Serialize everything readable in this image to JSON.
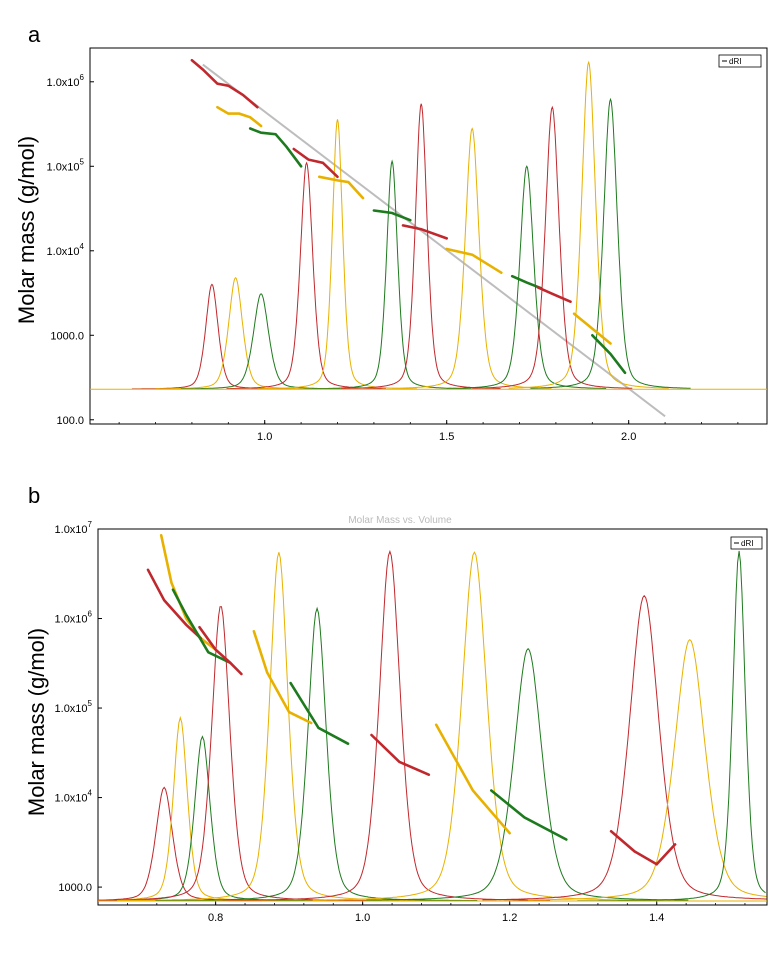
{
  "chart_data": [
    {
      "panel": "a",
      "type": "line",
      "legend": [
        "dRI"
      ],
      "ylabel": "Molar mass  (g/mol)",
      "ylog": true,
      "xlim": [
        0.52,
        2.38
      ],
      "ylim_log10": [
        1.95,
        6.4
      ],
      "xticks": [
        1.0,
        1.5,
        2.0
      ],
      "xtick_labels": [
        "1.0",
        "1.5",
        "2.0"
      ],
      "yticks": [
        {
          "mant": "100.0",
          "exp": "",
          "v": 100
        },
        {
          "mant": "1000.0",
          "exp": "",
          "v": 1000
        },
        {
          "mant": "1.0x10",
          "exp": "4",
          "v": 10000
        },
        {
          "mant": "1.0x10",
          "exp": "5",
          "v": 100000
        },
        {
          "mant": "1.0x10",
          "exp": "6",
          "v": 1000000
        }
      ],
      "baseline_signal": 230,
      "calibration_line": {
        "color": "#bdbdbd",
        "x": [
          0.83,
          2.1
        ],
        "y": [
          1600000,
          110
        ]
      },
      "peaks": [
        {
          "color": "#c0282d",
          "center": 0.855,
          "height": 4000,
          "width": 0.018
        },
        {
          "color": "#e8b100",
          "center": 0.92,
          "height": 4800,
          "width": 0.02
        },
        {
          "color": "#1e7a1e",
          "center": 0.99,
          "height": 3100,
          "width": 0.022
        },
        {
          "color": "#c0282d",
          "center": 1.115,
          "height": 110000,
          "width": 0.018
        },
        {
          "color": "#e8b100",
          "center": 1.2,
          "height": 360000,
          "width": 0.015
        },
        {
          "color": "#1e7a1e",
          "center": 1.35,
          "height": 115000,
          "width": 0.016
        },
        {
          "color": "#c0282d",
          "center": 1.43,
          "height": 550000,
          "width": 0.017
        },
        {
          "color": "#e8b100",
          "center": 1.57,
          "height": 280000,
          "width": 0.02
        },
        {
          "color": "#1e7a1e",
          "center": 1.72,
          "height": 100000,
          "width": 0.02
        },
        {
          "color": "#c0282d",
          "center": 1.79,
          "height": 500000,
          "width": 0.02
        },
        {
          "color": "#e8b100",
          "center": 1.89,
          "height": 1700000,
          "width": 0.02
        },
        {
          "color": "#1e7a1e",
          "center": 1.95,
          "height": 620000,
          "width": 0.02
        }
      ],
      "mass_segments": [
        {
          "color": "#c0282d",
          "x": [
            0.8,
            0.83,
            0.87,
            0.9,
            0.94,
            0.98
          ],
          "y": [
            1800000,
            1400000,
            950000,
            900000,
            700000,
            500000
          ]
        },
        {
          "color": "#e8b100",
          "x": [
            0.87,
            0.9,
            0.93,
            0.96,
            0.99
          ],
          "y": [
            500000,
            420000,
            420000,
            380000,
            300000
          ]
        },
        {
          "color": "#1e7a1e",
          "x": [
            0.96,
            0.99,
            1.03,
            1.06,
            1.1
          ],
          "y": [
            280000,
            250000,
            240000,
            170000,
            100000
          ]
        },
        {
          "color": "#c0282d",
          "x": [
            1.08,
            1.12,
            1.16,
            1.2
          ],
          "y": [
            160000,
            120000,
            110000,
            75000
          ]
        },
        {
          "color": "#e8b100",
          "x": [
            1.15,
            1.2,
            1.23,
            1.27
          ],
          "y": [
            75000,
            68000,
            65000,
            42000
          ]
        },
        {
          "color": "#1e7a1e",
          "x": [
            1.3,
            1.35,
            1.4
          ],
          "y": [
            30000,
            28000,
            23000
          ]
        },
        {
          "color": "#c0282d",
          "x": [
            1.38,
            1.43,
            1.5
          ],
          "y": [
            20000,
            18000,
            14000
          ]
        },
        {
          "color": "#e8b100",
          "x": [
            1.5,
            1.57,
            1.65
          ],
          "y": [
            10500,
            9000,
            5500
          ]
        },
        {
          "color": "#1e7a1e",
          "x": [
            1.68,
            1.72,
            1.76
          ],
          "y": [
            5000,
            4200,
            3600
          ]
        },
        {
          "color": "#c0282d",
          "x": [
            1.75,
            1.79,
            1.84
          ],
          "y": [
            3700,
            3100,
            2500
          ]
        },
        {
          "color": "#e8b100",
          "x": [
            1.85,
            1.9,
            1.95
          ],
          "y": [
            1800,
            1200,
            800
          ]
        },
        {
          "color": "#1e7a1e",
          "x": [
            1.9,
            1.95,
            1.99
          ],
          "y": [
            1000,
            600,
            360
          ]
        }
      ]
    },
    {
      "panel": "b",
      "type": "line",
      "legend": [
        "dRI"
      ],
      "ylabel": "Molar mass  (g/mol)",
      "ylog": true,
      "xlim": [
        0.64,
        1.55
      ],
      "ylim_log10": [
        2.8,
        7.0
      ],
      "xticks": [
        0.8,
        1.0,
        1.2,
        1.4
      ],
      "xtick_labels": [
        "0.8",
        "1.0",
        "1.2",
        "1.4"
      ],
      "yticks": [
        {
          "mant": "1000.0",
          "exp": "",
          "v": 1000
        },
        {
          "mant": "1.0x10",
          "exp": "4",
          "v": 10000
        },
        {
          "mant": "1.0x10",
          "exp": "5",
          "v": 100000
        },
        {
          "mant": "1.0x10",
          "exp": "6",
          "v": 1000000
        },
        {
          "mant": "1.0x10",
          "exp": "7",
          "v": 10000000
        }
      ],
      "baseline_signal": 700,
      "peaks": [
        {
          "color": "#c0282d",
          "center": 0.73,
          "height": 13000,
          "width": 0.012
        },
        {
          "color": "#e8b100",
          "center": 0.752,
          "height": 78000,
          "width": 0.01
        },
        {
          "color": "#1e7a1e",
          "center": 0.782,
          "height": 48000,
          "width": 0.011
        },
        {
          "color": "#c0282d",
          "center": 0.807,
          "height": 1400000,
          "width": 0.013
        },
        {
          "color": "#e8b100",
          "center": 0.886,
          "height": 5500000,
          "width": 0.013
        },
        {
          "color": "#1e7a1e",
          "center": 0.938,
          "height": 1300000,
          "width": 0.013
        },
        {
          "color": "#c0282d",
          "center": 1.037,
          "height": 5600000,
          "width": 0.015
        },
        {
          "color": "#e8b100",
          "center": 1.152,
          "height": 5500000,
          "width": 0.018
        },
        {
          "color": "#1e7a1e",
          "center": 1.225,
          "height": 460000,
          "width": 0.02
        },
        {
          "color": "#c0282d",
          "center": 1.383,
          "height": 1800000,
          "width": 0.021
        },
        {
          "color": "#e8b100",
          "center": 1.445,
          "height": 580000,
          "width": 0.022
        },
        {
          "color": "#1e7a1e",
          "center": 1.512,
          "height": 5700000,
          "width": 0.009
        }
      ],
      "mass_segments": [
        {
          "color": "#e8b100",
          "x": [
            0.726,
            0.74,
            0.76,
            0.78,
            0.8
          ],
          "y": [
            8500000,
            2500000,
            1000000,
            600000,
            450000
          ]
        },
        {
          "color": "#c0282d",
          "x": [
            0.708,
            0.73,
            0.76,
            0.78
          ],
          "y": [
            3500000,
            1600000,
            850000,
            600000
          ]
        },
        {
          "color": "#1e7a1e",
          "x": [
            0.742,
            0.76,
            0.79,
            0.82
          ],
          "y": [
            2100000,
            1100000,
            420000,
            320000
          ]
        },
        {
          "color": "#c0282d",
          "x": [
            0.778,
            0.8,
            0.82,
            0.835
          ],
          "y": [
            800000,
            450000,
            320000,
            240000
          ]
        },
        {
          "color": "#e8b100",
          "x": [
            0.852,
            0.87,
            0.9,
            0.93
          ],
          "y": [
            720000,
            250000,
            90000,
            68000
          ]
        },
        {
          "color": "#1e7a1e",
          "x": [
            0.902,
            0.94,
            0.98
          ],
          "y": [
            190000,
            60000,
            40000
          ]
        },
        {
          "color": "#c0282d",
          "x": [
            1.012,
            1.05,
            1.09
          ],
          "y": [
            50000,
            25000,
            18000
          ]
        },
        {
          "color": "#e8b100",
          "x": [
            1.1,
            1.15,
            1.2
          ],
          "y": [
            65000,
            12000,
            4000
          ]
        },
        {
          "color": "#1e7a1e",
          "x": [
            1.175,
            1.22,
            1.277
          ],
          "y": [
            12000,
            6000,
            3400
          ]
        },
        {
          "color": "#c0282d",
          "x": [
            1.338,
            1.37,
            1.4,
            1.425
          ],
          "y": [
            4200,
            2500,
            1800,
            3000
          ]
        }
      ],
      "annotation_title": "Molar Mass vs. Volume"
    }
  ],
  "labels": {
    "panel_a": "a",
    "panel_b": "b",
    "legend_a": "dRI",
    "legend_b": "dRI",
    "faint_title": "Molar Mass vs. Volume"
  }
}
